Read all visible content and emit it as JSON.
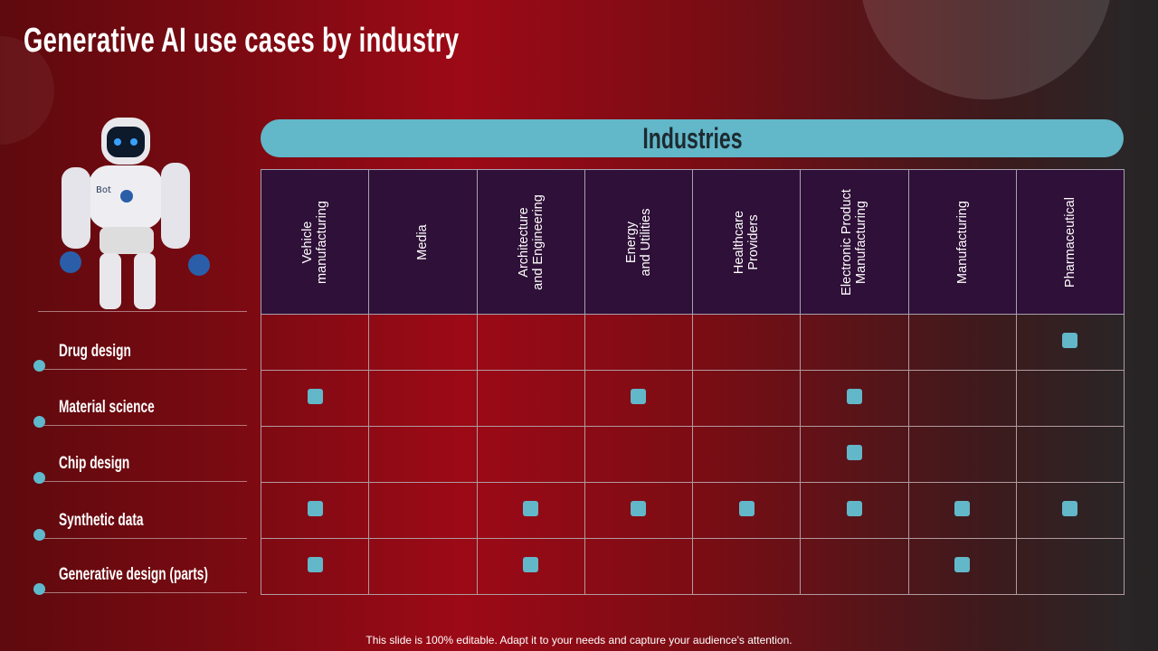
{
  "title": "Generative AI use cases by industry",
  "banner": "Industries",
  "industries": [
    "Vehicle\nmanufacturing",
    "Media",
    "Architecture\nand Engineering",
    "Energy\nand Utilities",
    "Healthcare\nProviders",
    "Electronic Product\nManufacturing",
    "Manufacturing",
    "Pharmaceutical"
  ],
  "use_cases": [
    {
      "label": "Drug design",
      "marks": [
        7
      ]
    },
    {
      "label": "Material science",
      "marks": [
        0,
        3,
        5
      ]
    },
    {
      "label": "Chip design",
      "marks": [
        5
      ]
    },
    {
      "label": "Synthetic data",
      "marks": [
        0,
        2,
        3,
        4,
        5,
        6,
        7
      ]
    },
    {
      "label": "Generative design (parts)",
      "marks": [
        0,
        2,
        6
      ]
    }
  ],
  "robot_label": "Bot",
  "colors": {
    "accent": "#62b7c9",
    "header_bg": "#2f1038"
  },
  "footer": "This slide is 100% editable. Adapt it to your needs and capture your audience's attention."
}
